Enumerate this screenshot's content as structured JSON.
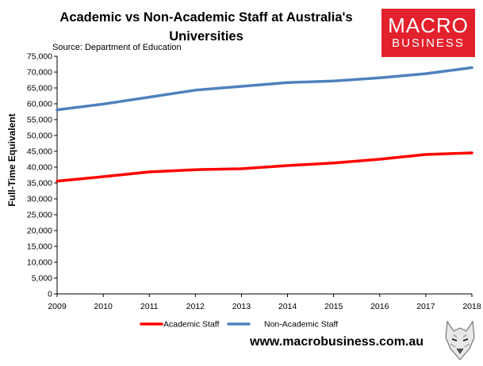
{
  "header": {
    "title": "Academic vs Non-Academic Staff at Australia's Universities",
    "source": "Source: Department of Education"
  },
  "logo": {
    "line1": "MACRO",
    "line2": "BUSINESS",
    "color": "#e3212d"
  },
  "footer": {
    "website": "www.macrobusiness.com.au",
    "mascot_icon": "wolf-icon"
  },
  "chart_data": {
    "type": "line",
    "x": [
      "2009",
      "2010",
      "2011",
      "2012",
      "2013",
      "2014",
      "2015",
      "2016",
      "2017",
      "2018"
    ],
    "ylabel": "Full-Time Equivalent",
    "xlabel": "",
    "ylim": [
      0,
      75000
    ],
    "yticks": [
      0,
      5000,
      10000,
      15000,
      20000,
      25000,
      30000,
      35000,
      40000,
      45000,
      50000,
      55000,
      60000,
      65000,
      70000,
      75000
    ],
    "ytick_labels": [
      "0",
      "5,000",
      "10,000",
      "15,000",
      "20,000",
      "25,000",
      "30,000",
      "35,000",
      "40,000",
      "45,000",
      "50,000",
      "55,000",
      "60,000",
      "65,000",
      "70,000",
      "75,000"
    ],
    "grid": false,
    "legend": "bottom",
    "series": [
      {
        "name": "Academic Staff",
        "color": "#ff0000",
        "values": [
          35600,
          37000,
          38500,
          39200,
          39500,
          40500,
          41300,
          42500,
          44000,
          44500
        ]
      },
      {
        "name": "Non-Academic Staff",
        "color": "#4f81bd",
        "values": [
          58100,
          59900,
          62100,
          64300,
          65500,
          66700,
          67200,
          68200,
          69500,
          71400
        ]
      }
    ]
  }
}
